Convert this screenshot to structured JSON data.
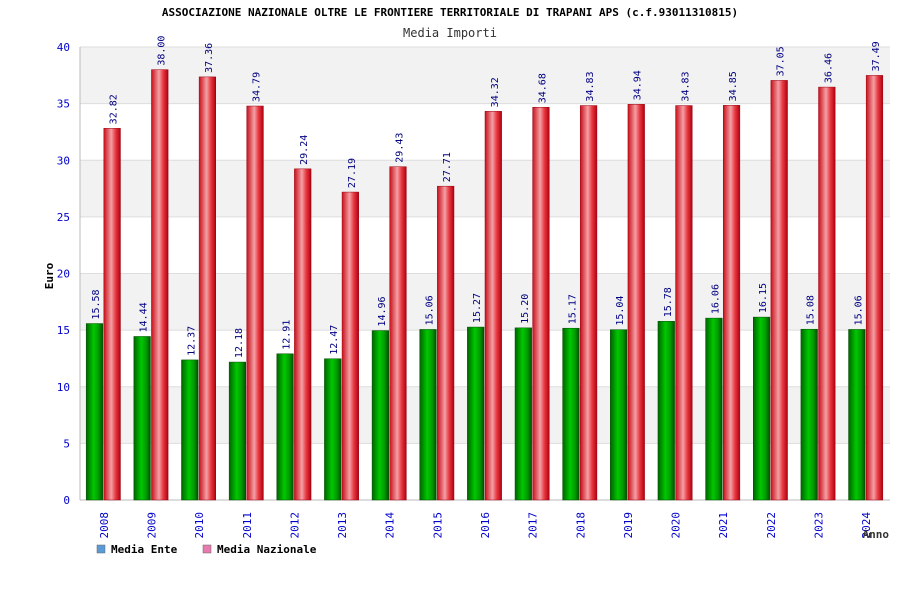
{
  "chart_data": {
    "type": "bar",
    "title": "ASSOCIAZIONE NAZIONALE OLTRE LE FRONTIERE TERRITORIALE DI TRAPANI APS (c.f.93011310815)",
    "subtitle": "Media Importi",
    "xlabel": "Anno",
    "ylabel": "Euro",
    "ylim": [
      0,
      40
    ],
    "yticks": [
      0,
      5,
      10,
      15,
      20,
      25,
      30,
      35,
      40
    ],
    "grid": true,
    "legend_position": "bottom-left",
    "categories": [
      "2008",
      "2009",
      "2010",
      "2011",
      "2012",
      "2013",
      "2014",
      "2015",
      "2016",
      "2017",
      "2018",
      "2019",
      "2020",
      "2021",
      "2022",
      "2023",
      "2024"
    ],
    "series": [
      {
        "name": "Media Ente",
        "color": "#00a000",
        "legend_color": "#5b9bd5",
        "values": [
          15.58,
          14.44,
          12.37,
          12.18,
          12.91,
          12.47,
          14.96,
          15.06,
          15.27,
          15.2,
          15.17,
          15.04,
          15.78,
          16.06,
          16.15,
          15.08,
          15.06
        ],
        "labels": [
          "15.58",
          "14.44",
          "12.37",
          "12.18",
          "12.91",
          "12.47",
          "14.96",
          "15.06",
          "15.27",
          "15.20",
          "15.17",
          "15.04",
          "15.78",
          "16.06",
          "16.15",
          "15.08",
          "15.06"
        ]
      },
      {
        "name": "Media Nazionale",
        "color": "#e8202a",
        "legend_color": "#e87ab0",
        "values": [
          32.82,
          38.0,
          37.36,
          34.79,
          29.24,
          27.19,
          29.43,
          27.71,
          34.32,
          34.68,
          34.83,
          34.94,
          34.83,
          34.85,
          37.05,
          36.46,
          37.49
        ],
        "labels": [
          "32.82",
          "38.00",
          "37.36",
          "34.79",
          "29.24",
          "27.19",
          "29.43",
          "27.71",
          "34.32",
          "34.68",
          "34.83",
          "34.94",
          "34.83",
          "34.85",
          "37.05",
          "36.46",
          "37.49"
        ]
      }
    ]
  }
}
